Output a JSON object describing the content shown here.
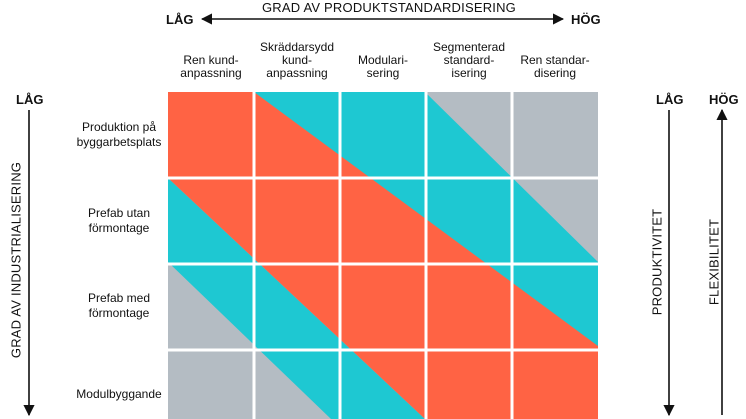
{
  "top_axis": {
    "low": "LÅG",
    "high": "HÖG",
    "title": "GRAD AV PRODUKTSTANDARDISERING"
  },
  "left_axis": {
    "low": "LÅG",
    "title": "GRAD AV INDUSTRIALISERING"
  },
  "columns": [
    [
      "Ren kund-",
      "anpassning"
    ],
    [
      "Skräddarsydd",
      "kund-",
      "anpassning"
    ],
    [
      "Modulari-",
      "sering"
    ],
    [
      "Segmenterad",
      "standard-",
      "isering"
    ],
    [
      "Ren standar-",
      "disering"
    ]
  ],
  "rows": [
    [
      "Produktion på",
      "byggarbetsplats"
    ],
    [
      "Prefab utan",
      "förmontage"
    ],
    [
      "Prefab med",
      "förmontage"
    ],
    [
      "Modulbyggande"
    ]
  ],
  "right_axes": {
    "low": "LÅG",
    "high": "HÖG",
    "productivity": "PRODUKTIVITET",
    "flexibility": "FLEXIBILITET"
  },
  "colors": {
    "orange": "#ff6344",
    "teal": "#1ec8d2",
    "gray": "#b4bcc3",
    "grid_line": "#ffffff"
  }
}
